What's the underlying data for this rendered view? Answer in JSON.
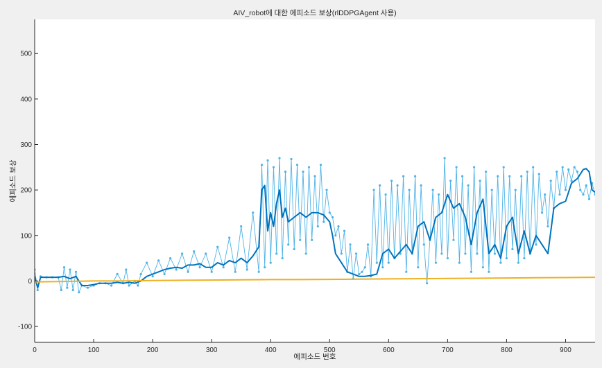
{
  "chart_data": {
    "type": "line",
    "title": "AIV_robot에 대한 에피소드 보상(rlDDPGAgent 사용)",
    "xlabel": "에피소드 번호",
    "ylabel": "에피소드 보상",
    "xlim": [
      0,
      950
    ],
    "ylim": [
      -135,
      575
    ],
    "xticks": [
      "0",
      "100",
      "200",
      "300",
      "400",
      "500",
      "600",
      "700",
      "800",
      "900"
    ],
    "yticks": [
      "-100",
      "0",
      "100",
      "200",
      "300",
      "400",
      "500"
    ],
    "grid": false,
    "legend": "none",
    "colors": {
      "episode_reward": "#4db3e6",
      "average_reward": "#0072bd",
      "episode_q0": "#edb120",
      "background": "#ffffff",
      "figure_background": "#f0f0f0"
    },
    "series": [
      {
        "key": "episode_reward",
        "style": "line-with-dots",
        "x": [
          0,
          5,
          10,
          20,
          30,
          40,
          45,
          50,
          55,
          60,
          65,
          70,
          75,
          80,
          90,
          100,
          110,
          120,
          130,
          140,
          150,
          155,
          160,
          170,
          175,
          180,
          190,
          200,
          210,
          220,
          230,
          240,
          250,
          260,
          270,
          280,
          290,
          300,
          310,
          320,
          330,
          340,
          350,
          360,
          370,
          380,
          385,
          390,
          395,
          400,
          405,
          410,
          415,
          420,
          425,
          430,
          435,
          440,
          445,
          450,
          455,
          460,
          465,
          470,
          475,
          480,
          485,
          490,
          495,
          500,
          505,
          510,
          515,
          520,
          525,
          530,
          535,
          540,
          545,
          550,
          555,
          560,
          565,
          570,
          575,
          580,
          585,
          590,
          595,
          600,
          605,
          610,
          615,
          620,
          625,
          630,
          635,
          640,
          645,
          650,
          655,
          660,
          665,
          670,
          675,
          680,
          685,
          690,
          695,
          700,
          705,
          710,
          715,
          720,
          725,
          730,
          735,
          740,
          745,
          750,
          755,
          760,
          765,
          770,
          775,
          780,
          785,
          790,
          795,
          800,
          805,
          810,
          815,
          820,
          825,
          830,
          835,
          840,
          845,
          850,
          855,
          860,
          865,
          870,
          875,
          880,
          885,
          890,
          895,
          900,
          905,
          910,
          915,
          920,
          925,
          930,
          935,
          940,
          945,
          950
        ],
        "y": [
          25,
          -20,
          10,
          8,
          8,
          8,
          -20,
          30,
          -15,
          25,
          -20,
          20,
          -25,
          -10,
          -15,
          -10,
          -5,
          -5,
          -10,
          15,
          -5,
          25,
          -10,
          0,
          -10,
          15,
          40,
          10,
          45,
          15,
          50,
          25,
          60,
          20,
          65,
          30,
          60,
          20,
          75,
          30,
          95,
          20,
          120,
          25,
          150,
          20,
          255,
          30,
          265,
          40,
          250,
          60,
          270,
          50,
          240,
          80,
          268,
          70,
          255,
          90,
          240,
          60,
          250,
          90,
          230,
          120,
          255,
          130,
          200,
          150,
          140,
          100,
          120,
          60,
          110,
          20,
          80,
          5,
          60,
          15,
          20,
          30,
          80,
          10,
          200,
          40,
          210,
          30,
          190,
          40,
          220,
          50,
          210,
          60,
          230,
          20,
          200,
          60,
          230,
          30,
          210,
          80,
          -5,
          90,
          200,
          40,
          190,
          60,
          270,
          50,
          220,
          90,
          250,
          40,
          230,
          60,
          210,
          20,
          250,
          60,
          220,
          30,
          240,
          20,
          200,
          60,
          230,
          40,
          250,
          50,
          230,
          70,
          200,
          40,
          230,
          50,
          240,
          60,
          250,
          80,
          235,
          150,
          190,
          120,
          220,
          160,
          240,
          190,
          250,
          200,
          245,
          220,
          250,
          240,
          200,
          190,
          210,
          180,
          215,
          190
        ]
      },
      {
        "key": "average_reward",
        "style": "thick-line",
        "x": [
          0,
          5,
          10,
          20,
          30,
          40,
          50,
          60,
          70,
          80,
          90,
          100,
          110,
          120,
          130,
          140,
          150,
          160,
          170,
          180,
          190,
          200,
          210,
          220,
          230,
          240,
          250,
          260,
          270,
          280,
          290,
          300,
          310,
          320,
          330,
          340,
          350,
          360,
          370,
          380,
          385,
          390,
          395,
          400,
          405,
          410,
          415,
          420,
          425,
          430,
          440,
          450,
          460,
          470,
          480,
          490,
          500,
          505,
          510,
          520,
          530,
          540,
          550,
          560,
          570,
          580,
          590,
          600,
          610,
          620,
          630,
          640,
          650,
          660,
          670,
          680,
          690,
          700,
          710,
          720,
          730,
          740,
          750,
          760,
          770,
          780,
          790,
          800,
          810,
          820,
          830,
          840,
          850,
          860,
          870,
          880,
          890,
          900,
          910,
          920,
          930,
          935,
          940,
          945,
          950
        ],
        "y": [
          10,
          -15,
          8,
          8,
          8,
          8,
          10,
          5,
          10,
          -10,
          -10,
          -8,
          -5,
          -5,
          -5,
          -3,
          -5,
          -3,
          -5,
          0,
          10,
          15,
          20,
          25,
          28,
          30,
          28,
          35,
          35,
          38,
          30,
          30,
          40,
          35,
          45,
          40,
          50,
          40,
          55,
          75,
          200,
          210,
          110,
          150,
          120,
          170,
          200,
          140,
          160,
          130,
          140,
          150,
          140,
          150,
          150,
          145,
          130,
          100,
          60,
          40,
          20,
          15,
          10,
          10,
          12,
          15,
          60,
          70,
          50,
          65,
          80,
          60,
          120,
          130,
          90,
          140,
          150,
          190,
          160,
          170,
          140,
          80,
          150,
          180,
          60,
          80,
          50,
          120,
          140,
          60,
          110,
          60,
          100,
          80,
          60,
          160,
          170,
          175,
          215,
          225,
          245,
          247,
          240,
          200,
          195
        ]
      },
      {
        "key": "episode_q0",
        "style": "line",
        "x": [
          0,
          50,
          100,
          150,
          200,
          250,
          300,
          350,
          400,
          450,
          500,
          550,
          600,
          650,
          700,
          750,
          800,
          850,
          900,
          950
        ],
        "y": [
          -2,
          -1,
          0,
          0,
          1,
          1.5,
          2,
          2.5,
          3,
          3,
          3.5,
          4,
          4.5,
          5,
          5.5,
          6,
          6.5,
          7,
          7.5,
          8
        ]
      }
    ]
  }
}
